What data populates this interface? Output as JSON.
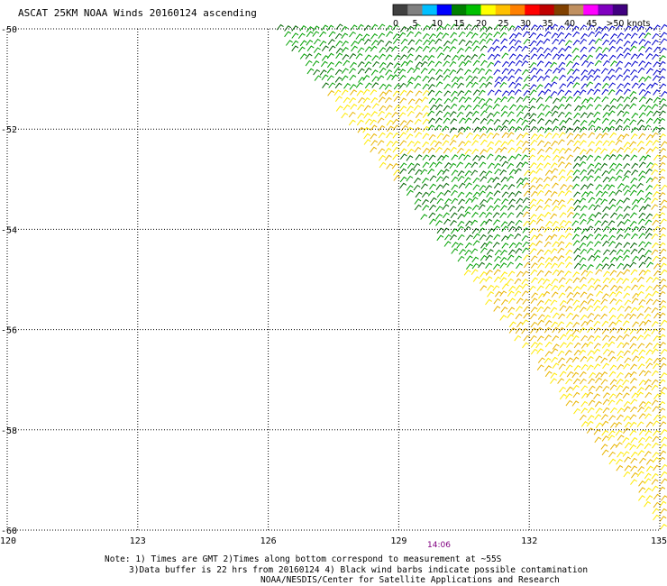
{
  "title": "ASCAT 25KM NOAA Winds 20160124 ascending",
  "legend": {
    "labels": [
      "0",
      "5",
      "10",
      "15",
      "20",
      "25",
      "30",
      "35",
      "40",
      "45",
      ">50 knots"
    ],
    "colors": [
      "#404040",
      "#808080",
      "#00bfff",
      "#0000ff",
      "#008000",
      "#00c000",
      "#ffff00",
      "#ffc000",
      "#ff8000",
      "#ff0000",
      "#c00000",
      "#804000",
      "#c09060",
      "#ff00ff",
      "#8000c0",
      "#400080"
    ]
  },
  "axes": {
    "x_ticks": [
      "120",
      "123",
      "126",
      "129",
      "132",
      "135"
    ],
    "y_ticks": [
      "-50",
      "-52",
      "-54",
      "-56",
      "-58",
      "-60"
    ],
    "x_range": [
      120,
      135
    ],
    "y_range": [
      -60,
      -50
    ]
  },
  "time_label": "14:06",
  "notes": {
    "line1": "Note: 1) Times are GMT 2)Times along bottom correspond to measurement at ~55S",
    "line2": "3)Data buffer is 22 hrs from 20160124 4) Black wind barbs indicate possible contamination",
    "line3": "NOAA/NESDIS/Center for Satellite Applications and Research"
  },
  "colors": {
    "blue": "#0000cc",
    "green": "#00a000",
    "dark_green": "#006400",
    "yellow": "#ffea00",
    "orange_yellow": "#e8b400",
    "time": "#800080"
  }
}
